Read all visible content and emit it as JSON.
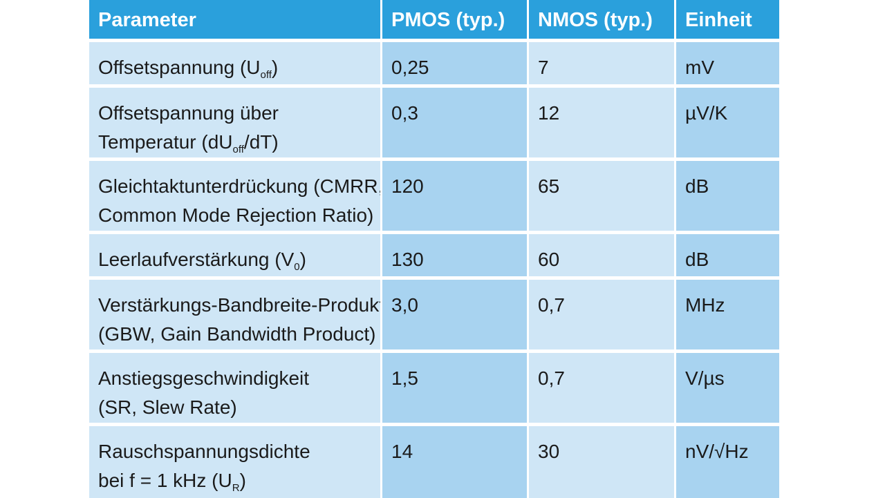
{
  "header": {
    "parameter": "Parameter",
    "pmos": "PMOS (typ.)",
    "nmos": "NMOS (typ.)",
    "unit": "Einheit"
  },
  "rows": [
    {
      "param_line1": "Offsetspannung (U",
      "param_sub": "off",
      "param_line1_end": ")",
      "param_line2": "",
      "pmos": "0,25",
      "nmos": "7",
      "unit": "mV"
    },
    {
      "param_line1": "Offsetspannung über",
      "param_line2_pre": "Temperatur (dU",
      "param_sub": "off",
      "param_line2_end": "/dT)",
      "pmos": "0,3",
      "nmos": "12",
      "unit": "µV/K"
    },
    {
      "param_line1": "Gleichtaktunterdrückung (CMRR,",
      "param_line2": "Common Mode Rejection Ratio)",
      "pmos": "120",
      "nmos": "65",
      "unit": "dB"
    },
    {
      "param_line1": "Leerlaufverstärkung (V",
      "param_sub": "0",
      "param_line1_end": ")",
      "pmos": "130",
      "nmos": "60",
      "unit": "dB"
    },
    {
      "param_line1": "Verstärkungs-Bandbreite-Produkt",
      "param_line2": "(GBW, Gain Bandwidth Product)",
      "pmos": "3,0",
      "nmos": "0,7",
      "unit": "MHz"
    },
    {
      "param_line1": "Anstiegsgeschwindigkeit",
      "param_line2": "(SR, Slew Rate)",
      "pmos": "1,5",
      "nmos": "0,7",
      "unit": "V/µs"
    },
    {
      "param_line1": "Rauschspannungsdichte",
      "param_line2_pre": "bei f = 1 kHz (U",
      "param_sub": "R",
      "param_line2_end": ")",
      "pmos": "14",
      "nmos": "30",
      "unit": "nV/√Hz"
    }
  ]
}
